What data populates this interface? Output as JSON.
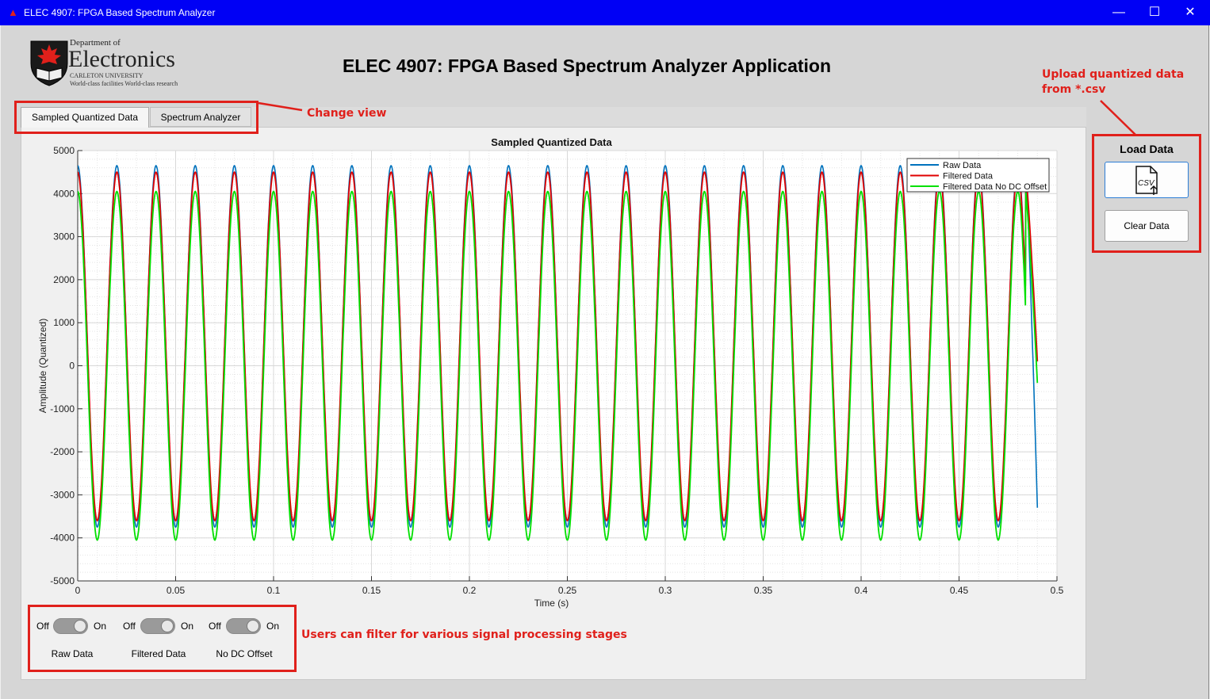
{
  "window": {
    "title": "ELEC 4907: FPGA Based Spectrum Analyzer",
    "controls": [
      "minimize",
      "maximize",
      "close"
    ]
  },
  "logo": {
    "line1": "Department of",
    "line2": "Electronics",
    "line3": "CARLETON UNIVERSITY",
    "line4": "World-class facilities  World-class research"
  },
  "app_title": "ELEC 4907: FPGA Based Spectrum Analyzer Application",
  "tabs": [
    {
      "label": "Sampled Quantized Data",
      "active": true
    },
    {
      "label": "Spectrum Analyzer",
      "active": false
    }
  ],
  "annotations": {
    "change_view": "Change view",
    "upload_line1": "Upload quantized data",
    "upload_line2": "from *.csv",
    "filter": "Users can filter for various signal processing stages"
  },
  "load_panel": {
    "title": "Load Data",
    "load_icon_text": "CSV",
    "clear_label": "Clear Data"
  },
  "switches": [
    {
      "name": "Raw Data",
      "off": "Off",
      "on": "On",
      "state": "on"
    },
    {
      "name": "Filtered Data",
      "off": "Off",
      "on": "On",
      "state": "on"
    },
    {
      "name": "No DC Offset",
      "off": "Off",
      "on": "On",
      "state": "on"
    }
  ],
  "colors": {
    "titlebar": "#0000f5",
    "annotation_red": "#e0201b",
    "raw": "#0072bd",
    "filtered": "#e00000",
    "nodc": "#00e000"
  },
  "chart_data": {
    "type": "line",
    "title": "Sampled Quantized Data",
    "xlabel": "Time (s)",
    "ylabel": "Amplitude (Quantized)",
    "xlim": [
      0,
      0.5
    ],
    "ylim": [
      -5000,
      5000
    ],
    "xticks": [
      "0",
      "0.05",
      "0.1",
      "0.15",
      "0.2",
      "0.25",
      "0.3",
      "0.35",
      "0.4",
      "0.45",
      "0.5"
    ],
    "yticks": [
      "5000",
      "4000",
      "3000",
      "2000",
      "1000",
      "0",
      "-1000",
      "-2000",
      "-3000",
      "-4000",
      "-5000"
    ],
    "grid": true,
    "minor_grid": true,
    "legend_position": "top-right",
    "x_end": 0.49,
    "frequency_hz": 50,
    "series": [
      {
        "name": "Raw Data",
        "color": "#0072bd",
        "amplitude": 4200,
        "offset": 450,
        "end_value": -3300
      },
      {
        "name": "Filtered Data",
        "color": "#e00000",
        "amplitude": 4050,
        "offset": 450,
        "end_value": 100
      },
      {
        "name": "Filtered Data No DC Offset",
        "color": "#00e000",
        "amplitude": 4050,
        "offset": 0,
        "end_value": -400
      }
    ]
  }
}
